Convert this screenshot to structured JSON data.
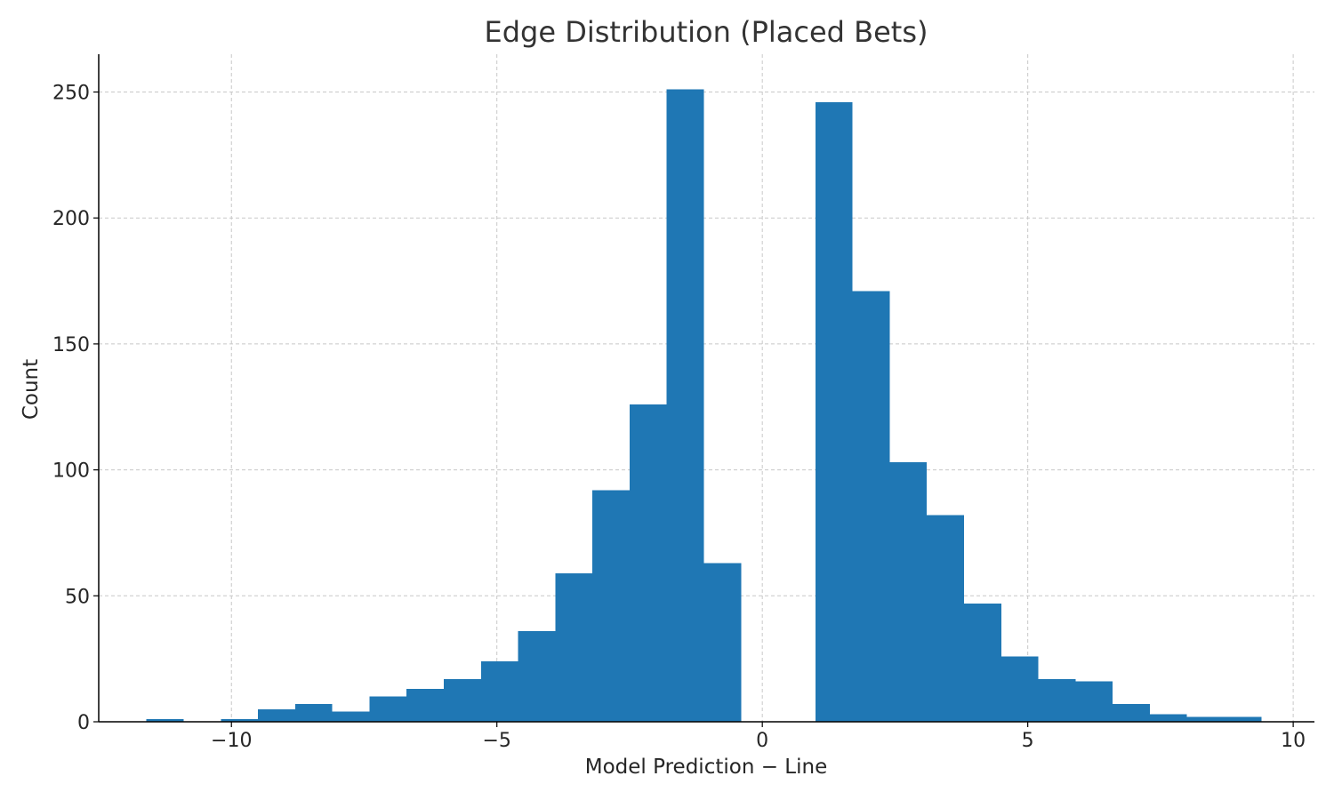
{
  "chart_data": {
    "type": "bar",
    "title": "Edge Distribution (Placed Bets)",
    "xlabel": "Model Prediction − Line",
    "ylabel": "Count",
    "xlim": [
      -12.5,
      10.4
    ],
    "ylim": [
      0,
      265
    ],
    "grid": true,
    "x_ticks": [
      {
        "value": -10,
        "label": "−10"
      },
      {
        "value": -5,
        "label": "−5"
      },
      {
        "value": 0,
        "label": "0"
      },
      {
        "value": 5,
        "label": "5"
      },
      {
        "value": 10,
        "label": "10"
      }
    ],
    "y_ticks": [
      {
        "value": 0,
        "label": "0"
      },
      {
        "value": 50,
        "label": "50"
      },
      {
        "value": 100,
        "label": "100"
      },
      {
        "value": 150,
        "label": "150"
      },
      {
        "value": 200,
        "label": "200"
      },
      {
        "value": 250,
        "label": "250"
      }
    ],
    "bin_edges": [
      -11.6,
      -10.9,
      -10.2,
      -9.5,
      -8.8,
      -8.1,
      -7.4,
      -6.7,
      -6.0,
      -5.3,
      -4.6,
      -3.9,
      -3.2,
      -2.5,
      -1.8,
      -1.1,
      -0.4,
      0.3,
      1.0,
      1.7,
      2.4,
      3.1,
      3.8,
      4.5,
      5.2,
      5.9,
      6.6,
      7.3,
      8.0,
      8.7,
      9.4
    ],
    "values": [
      1,
      0,
      1,
      5,
      7,
      4,
      10,
      13,
      17,
      24,
      36,
      59,
      92,
      126,
      251,
      63,
      0,
      0,
      246,
      171,
      103,
      82,
      47,
      26,
      17,
      16,
      7,
      3,
      2,
      2
    ],
    "bar_color": "#1f77b4"
  }
}
